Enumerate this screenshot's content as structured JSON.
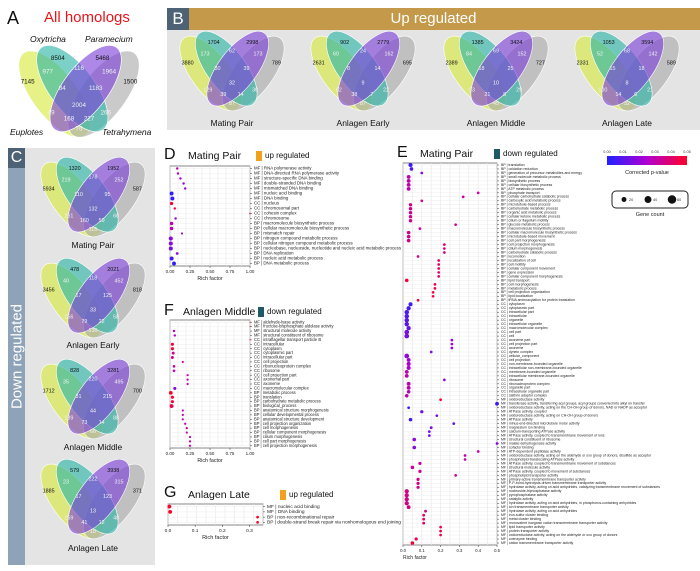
{
  "panels": {
    "a": {
      "letter": "A",
      "title": "All homologs",
      "title_color": "#e8141b"
    },
    "b": {
      "letter": "B",
      "title": "Up regulated"
    },
    "c": {
      "letter": "C",
      "title": "Down regulated"
    },
    "d": {
      "letter": "D",
      "title": "Mating Pair",
      "regulation": "up regulated"
    },
    "e": {
      "letter": "E",
      "title": "Mating Pair",
      "regulation": "down regulated"
    },
    "f": {
      "letter": "F",
      "title": "Anlagen Middle",
      "regulation": "down regulated"
    },
    "g": {
      "letter": "G",
      "title": "Anlagen Late",
      "regulation": "up regulated"
    }
  },
  "colors": {
    "up": "#f0a21e",
    "down": "#1d5a66",
    "header_up": "#c49a4a",
    "header_down": "#8ea3b8",
    "euplotes": "#d6ea3c",
    "oxytricha": "#2ab5a5",
    "paramecium": "#7b3fd8",
    "tetrahymena": "#a9a9a9"
  },
  "species": {
    "oxytricha": "Oxytricha",
    "paramecium": "Paramecium",
    "euplotes": "Euplotes",
    "tetrahymena": "Tetrahymena"
  },
  "venn_region_order": [
    "O",
    "P",
    "E",
    "T",
    "EO",
    "OP",
    "PT",
    "EOP",
    "OPT",
    "EOPT",
    "EP",
    "OT",
    "EPT",
    "EOT",
    "ET"
  ],
  "venns": {
    "all": {
      "label": "",
      "counts": [
        8504,
        5468,
        7145,
        1500,
        977,
        116,
        1964,
        84,
        1183,
        2004,
        49,
        266,
        168,
        227,
        76
      ]
    },
    "up": [
      {
        "label": "Mating Pair",
        "counts": [
          1704,
          2998,
          3880,
          789,
          173,
          62,
          173,
          30,
          39,
          32,
          129,
          30,
          39,
          14,
          87
        ]
      },
      {
        "label": "Anlagen Early",
        "counts": [
          902,
          2779,
          2631,
          695,
          60,
          24,
          162,
          8,
          14,
          9,
          62,
          22,
          38,
          7,
          87
        ]
      },
      {
        "label": "Anlagen Middle",
        "counts": [
          1385,
          3424,
          2389,
          727,
          84,
          69,
          152,
          18,
          25,
          10,
          93,
          29,
          21,
          8,
          45
        ]
      },
      {
        "label": "Anlagen Late",
        "counts": [
          1053,
          3594,
          2331,
          589,
          52,
          68,
          142,
          15,
          18,
          8,
          100,
          21,
          14,
          6,
          32
        ]
      }
    ],
    "down": [
      {
        "label": "Mating Pair",
        "counts": [
          1320,
          1952,
          5934,
          587,
          219,
          178,
          252,
          110,
          95,
          132,
          261,
          60,
          160,
          59,
          115
        ]
      },
      {
        "label": "Anlagen Early",
        "counts": [
          478,
          2021,
          3456,
          818,
          40,
          118,
          452,
          17,
          125,
          33,
          156,
          58,
          79,
          22,
          130
        ]
      },
      {
        "label": "Anlagen Middle",
        "counts": [
          828,
          3281,
          1712,
          700,
          35,
          220,
          495,
          31,
          215,
          44,
          139,
          88,
          73,
          14,
          66
        ]
      },
      {
        "label": "Anlagen Late",
        "counts": [
          579,
          3938,
          1885,
          371,
          23,
          222,
          315,
          17,
          123,
          13,
          159,
          48,
          41,
          12,
          18
        ]
      }
    ]
  },
  "legend": {
    "colorbar_ticks": [
      "0.00",
      "0.01",
      "0.02",
      "0.03",
      "0.04",
      "0.05"
    ],
    "colorbar_title": "Corrected p-value",
    "size_values": [
      20,
      40,
      60
    ],
    "size_labels": [
      "20",
      "40",
      "60"
    ],
    "size_title": "Gene count"
  },
  "chart_data": [
    {
      "id": "d",
      "type": "scatter",
      "title": "Mating Pair",
      "xlabel": "Rich factor",
      "xlim": [
        0,
        1
      ],
      "xticks": [
        "0.00",
        "0.25",
        "0.50",
        "0.75",
        "1.00"
      ],
      "xtick_values": [
        0,
        0.25,
        0.5,
        0.75,
        1
      ],
      "terms": [
        "MF | RNA polymerase activity",
        "MF | DNA-directed RNA polymerase activity",
        "MF | structure-specific DNA binding",
        "MF | double-stranded DNA binding",
        "MF | mismatched DNA binding",
        "MF | nucleic acid binding",
        "MF | DNA binding",
        "CC | nucleus",
        "CC | chromosomal part",
        "CC | cohesin complex",
        "CC | chromosome",
        "BP | macromolecule biosynthetic process",
        "BP | cellular macromolecule biosynthetic process",
        "BP | mismatch repair",
        "BP | nitrogen compound metabolic process",
        "BP | cellular nitrogen compound metabolic process",
        "BP | nucleobase, nucleoside, nucleotide and nucleic acid metabolic process",
        "BP | DNA replication",
        "BP | nucleic acid metabolic process",
        "BP | DNA metabolic process"
      ],
      "rich": [
        0.09,
        0.1,
        0.13,
        0.17,
        0.19,
        0.02,
        0.03,
        0.02,
        0.06,
        1.0,
        0.07,
        0.02,
        0.02,
        0.15,
        0.01,
        0.01,
        0.01,
        0.09,
        0.02,
        0.05
      ],
      "pvalue": [
        0.03,
        0.03,
        0.025,
        0.02,
        0.02,
        0.002,
        0.003,
        0.048,
        0.045,
        0.04,
        0.02,
        0.03,
        0.03,
        0.022,
        0.018,
        0.018,
        0.016,
        0.02,
        0.005,
        0.003
      ],
      "count": [
        20,
        20,
        20,
        20,
        20,
        50,
        50,
        35,
        20,
        8,
        20,
        40,
        40,
        15,
        55,
        55,
        55,
        25,
        55,
        50
      ]
    },
    {
      "id": "e",
      "type": "scatter",
      "title": "Mating Pair",
      "xlabel": "Rich factor",
      "xlim": [
        0,
        0.5
      ],
      "xticks": [
        "0.0",
        "0.1",
        "0.2",
        "0.3",
        "0.4",
        "0.5"
      ],
      "xtick_values": [
        0,
        0.1,
        0.2,
        0.3,
        0.4,
        0.5
      ],
      "terms": [
        "BP | translation",
        "BP | oxidation reduction",
        "BP | generation of precursor metabolites and energy",
        "BP | small molecule metabolic process",
        "BP | biosynthetic process",
        "BP | cellular biosynthetic process",
        "BP | ATP metabolic process",
        "BP | phosphate transport",
        "BP | cellular carbohydrate catabolic process",
        "BP | carboxylic acid metabolic process",
        "BP | microtubule-based process",
        "BP | carbohydrate metabolic process",
        "BP | organic acid metabolic process",
        "BP | cellular ketone metabolic process",
        "BP | cilium or flagellum motility",
        "BP | glucose metabolic process",
        "BP | macromolecule biosynthetic process",
        "BP | cellular macromolecule biosynthetic process",
        "BP | microtubule-based movement",
        "BP | cell part morphogenesis",
        "BP | cell projection morphogenesis",
        "BP | cilium morphogenesis",
        "BP | carbohydrate catabolic process",
        "BP | locomotion",
        "BP | localization of cell",
        "BP | cell motility",
        "BP | cellular component movement",
        "BP | gene expression",
        "BP | cellular component morphogenesis",
        "BP | lipid transport",
        "BP | cell morphogenesis",
        "BP | metabolic process",
        "BP | cell projection organization",
        "BP | lipid localization",
        "BP | tRNA aminoacylation for protein translation",
        "CC | cytoplasm",
        "CC | cytoplasmic part",
        "CC | intracellular part",
        "CC | intracellular",
        "CC | organelle",
        "CC | intracellular organelle",
        "CC | macromolecular complex",
        "CC | cell part",
        "CC | cell",
        "CC | axoneme part",
        "CC | cell projection part",
        "CC | axoneme",
        "CC | dynein complex",
        "CC | cellular_component",
        "CC | cell projection",
        "CC | non-membrane-bounded organelle",
        "CC | intracellular non-membrane-bounded organelle",
        "CC | membrane-bounded organelle",
        "CC | intracellular membrane-bounded organelle",
        "CC | ribosome",
        "CC | ribonucleoprotein complex",
        "CC | organelle part",
        "CC | intracellular organelle part",
        "CC | clathrin adaptor complex",
        "MF | oxidoreductase activity",
        "MF | transferase activity, transferring acyl groups, acyl groups converted into alkyl on transfer",
        "MF | oxidoreductase activity, acting on the CH-OH group of donors, NAD or NADP as acceptor",
        "MF | ATPase activity, coupled",
        "MF | oxidoreductase activity, acting on CH-OH group of donors",
        "MF | ATPase activity",
        "MF | minus-end-directed microtubule motor activity",
        "MF | magnesium ion binding",
        "MF | calcium-transporting ATPase activity",
        "MF | ATPase activity, coupled to transmembrane movement of ions",
        "MF | structural constituent of ribosome",
        "MF | malate dehydrogenase activity",
        "MF | cofactor binding",
        "MF | ATP-dependent peptidase activity",
        "MF | oxidoreductase activity, acting on the aldehyde or oxo group of donors, disulfide as acceptor",
        "MF | phospholipid-translocating ATPase activity",
        "MF | ATPase activity, coupled to transmembrane movement of substances",
        "MF | structural molecule activity",
        "MF | ATPase activity, coupled to movement of substances",
        "MF | phospholipid transporter activity",
        "MF | primary active transmembrane transporter activity",
        "MF | P-P-bond-hydrolysis-driven transmembrane transporter activity",
        "MF | hydrolase activity, acting on acid anhydrides, catalyzing transmembrane movement of substances",
        "MF | nucleoside-triphosphatase activity",
        "MF | pyrophosphatase activity",
        "MF | catalytic activity",
        "MF | hydrolase activity, acting on acid anhydrides, in phosphorus-containing anhydrides",
        "MF | ion transmembrane transporter activity",
        "MF | hydrolase activity, acting on acid anhydrides",
        "MF | iron-sulfur cluster binding",
        "MF | metal cluster binding",
        "MF | monovalent inorganic cation transmembrane transporter activity",
        "MF | lipid transporter activity",
        "MF | protein transporter activity",
        "MF | oxidoreductase activity, acting on the aldehyde or oxo group of donors",
        "MF | coenzyme binding",
        "MF | cation transmembrane transporter activity"
      ],
      "rich": [
        0.04,
        0.045,
        0.1,
        0.03,
        0.03,
        0.03,
        0.03,
        0.4,
        0.32,
        0.1,
        0.04,
        0.04,
        0.04,
        0.04,
        0.04,
        0.28,
        0.09,
        0.03,
        0.03,
        0.03,
        0.22,
        0.22,
        0.22,
        0.08,
        0.19,
        0.19,
        0.19,
        0.19,
        0.19,
        0.02,
        0.17,
        0.17,
        0.16,
        0.16,
        0.08,
        0.04,
        0.03,
        0.02,
        0.02,
        0.02,
        0.02,
        0.03,
        0.02,
        0.02,
        0.26,
        0.26,
        0.26,
        0.15,
        0.02,
        0.03,
        0.03,
        0.03,
        0.02,
        0.02,
        0.22,
        0.03,
        0.03,
        0.03,
        0.02,
        0.2,
        0.5,
        0.03,
        0.1,
        0.18,
        0.04,
        0.27,
        0.15,
        0.14,
        0.14,
        0.06,
        0.5,
        0.06,
        0.4,
        0.33,
        0.33,
        0.09,
        0.05,
        0.09,
        0.28,
        0.08,
        0.08,
        0.08,
        0.02,
        0.02,
        0.02,
        0.02,
        0.03,
        0.12,
        0.11,
        0.11,
        0.11,
        0.2,
        0.2,
        0.2,
        0.07,
        0.05
      ],
      "pvalue": [
        0.005,
        0.008,
        0.018,
        0.03,
        0.03,
        0.03,
        0.03,
        0.032,
        0.032,
        0.035,
        0.035,
        0.035,
        0.035,
        0.035,
        0.035,
        0.035,
        0.033,
        0.036,
        0.036,
        0.036,
        0.038,
        0.038,
        0.038,
        0.036,
        0.04,
        0.04,
        0.04,
        0.04,
        0.04,
        0.048,
        0.045,
        0.045,
        0.046,
        0.046,
        0.047,
        0.005,
        0.006,
        0.008,
        0.008,
        0.01,
        0.01,
        0.012,
        0.015,
        0.015,
        0.02,
        0.02,
        0.02,
        0.018,
        0.02,
        0.022,
        0.025,
        0.025,
        0.03,
        0.03,
        0.018,
        0.03,
        0.03,
        0.028,
        0.03,
        0.048,
        0.005,
        0.006,
        0.012,
        0.015,
        0.006,
        0.01,
        0.016,
        0.016,
        0.016,
        0.018,
        0.02,
        0.018,
        0.03,
        0.03,
        0.03,
        0.032,
        0.034,
        0.034,
        0.034,
        0.035,
        0.035,
        0.035,
        0.036,
        0.036,
        0.036,
        0.036,
        0.036,
        0.038,
        0.04,
        0.04,
        0.04,
        0.045,
        0.045,
        0.045,
        0.045,
        0.048
      ],
      "count": [
        45,
        35,
        20,
        40,
        40,
        40,
        40,
        20,
        20,
        20,
        32,
        32,
        32,
        32,
        32,
        20,
        20,
        35,
        35,
        35,
        20,
        20,
        20,
        20,
        20,
        20,
        20,
        20,
        20,
        35,
        20,
        20,
        20,
        20,
        20,
        45,
        50,
        55,
        55,
        55,
        55,
        50,
        60,
        60,
        20,
        20,
        20,
        20,
        60,
        40,
        45,
        45,
        40,
        40,
        20,
        40,
        40,
        35,
        35,
        20,
        40,
        20,
        28,
        20,
        35,
        20,
        22,
        20,
        20,
        35,
        20,
        35,
        20,
        20,
        20,
        28,
        35,
        28,
        20,
        28,
        28,
        28,
        50,
        50,
        50,
        50,
        40,
        22,
        22,
        22,
        22,
        20,
        20,
        20,
        28,
        35
      ]
    },
    {
      "id": "f",
      "type": "scatter",
      "title": "Anlagen Middle",
      "xlabel": "Rich factor",
      "xlim": [
        0,
        1
      ],
      "xticks": [
        "0.00",
        "0.25",
        "0.50",
        "0.75",
        "1.00"
      ],
      "xtick_values": [
        0,
        0.25,
        0.5,
        0.75,
        1
      ],
      "terms": [
        "MF | aldehyde-lyase activity",
        "MF | fructose-bisphosphate aldolase activity",
        "MF | structural molecule activity",
        "MF | structural constituent of ribosome",
        "CC | intraflagellar transport particle B",
        "CC | intracellular",
        "CC | cytoplasm",
        "CC | cytoplasmic part",
        "CC | intracellular part",
        "CC | cell projection",
        "CC | ribonucleoprotein complex",
        "CC | ribosome",
        "CC | cell projection part",
        "CC | axonemal part",
        "CC | axoneme",
        "CC | macromolecular complex",
        "BP | metabolic process",
        "BP | translation",
        "BP | carbohydrate metabolic process",
        "BP | biological_process",
        "BP | anatomical structure morphogenesis",
        "BP | cellular developmental process",
        "BP | anatomical structure development",
        "BP | cell projection organization",
        "BP | cell morphogenesis",
        "BP | cellular component morphogenesis",
        "BP | cilium morphogenesis",
        "BP | cell part morphogenesis",
        "BP | cell projection morphogenesis"
      ],
      "rich": [
        1.0,
        1.0,
        0.05,
        0.06,
        1.0,
        0.03,
        0.03,
        0.04,
        0.03,
        0.16,
        0.05,
        0.05,
        0.22,
        0.22,
        0.22,
        0.06,
        0.01,
        0.03,
        0.03,
        0.02,
        0.16,
        0.16,
        0.16,
        0.19,
        0.21,
        0.21,
        0.25,
        0.25,
        0.25
      ],
      "pvalue": [
        0.05,
        0.05,
        0.03,
        0.025,
        0.05,
        0.047,
        0.047,
        0.035,
        0.035,
        0.03,
        0.03,
        0.03,
        0.03,
        0.03,
        0.03,
        0.018,
        0.05,
        0.048,
        0.048,
        0.045,
        0.03,
        0.03,
        0.03,
        0.032,
        0.032,
        0.032,
        0.032,
        0.032,
        0.032
      ],
      "count": [
        5,
        5,
        25,
        25,
        5,
        40,
        40,
        35,
        35,
        20,
        28,
        28,
        20,
        20,
        20,
        40,
        55,
        40,
        40,
        60,
        20,
        20,
        20,
        20,
        20,
        20,
        20,
        20,
        20
      ]
    },
    {
      "id": "g",
      "type": "scatter",
      "title": "Anlagen Late",
      "xlabel": "Rich factor",
      "xlim": [
        0,
        0.35
      ],
      "xticks": [
        "0.0",
        "0.1",
        "0.2",
        "0.3"
      ],
      "xtick_values": [
        0,
        0.1,
        0.2,
        0.3
      ],
      "terms": [
        "MF | nucleic acid binding",
        "MF | DNA binding",
        "BP | non-recombinational repair",
        "BP | double-strand break repair via nonhomologous end joining"
      ],
      "rich": [
        0.005,
        0.008,
        0.33,
        0.33
      ],
      "pvalue": [
        0.05,
        0.05,
        0.05,
        0.05
      ],
      "count": [
        40,
        40,
        20,
        20
      ]
    }
  ]
}
